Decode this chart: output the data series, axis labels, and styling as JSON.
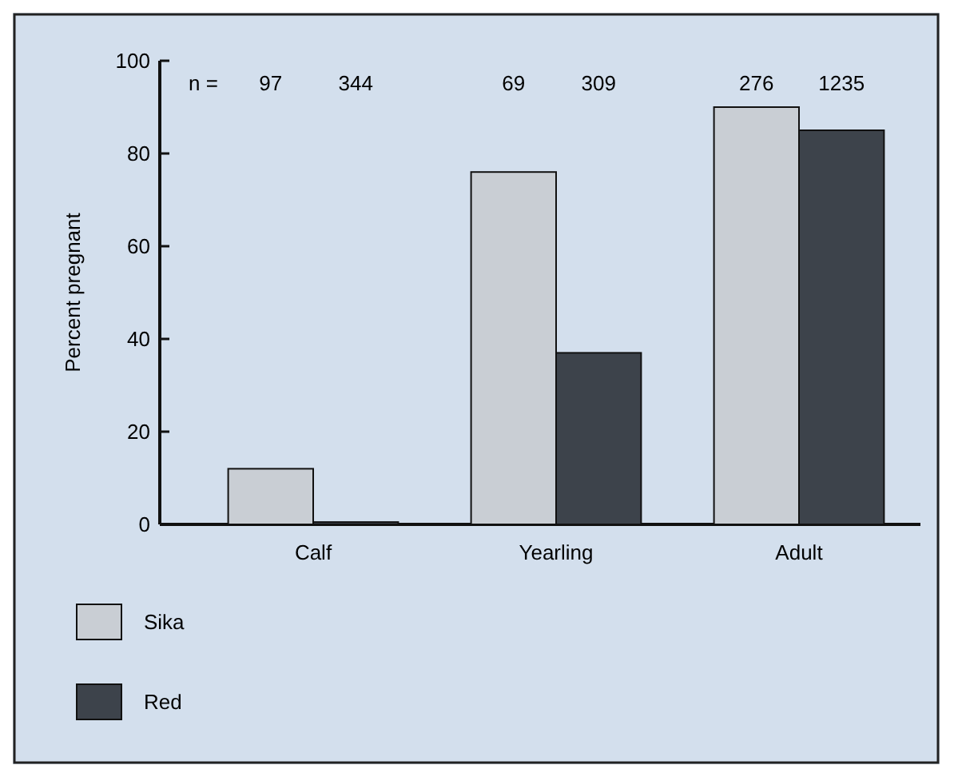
{
  "chart_data": {
    "type": "bar",
    "ylabel": "Percent pregnant",
    "categories": [
      "Calf",
      "Yearling",
      "Adult"
    ],
    "series": [
      {
        "name": "Sika",
        "color": "#c9ced4",
        "values": [
          12,
          76,
          90
        ]
      },
      {
        "name": "Red",
        "color": "#3d434b",
        "values": [
          0.5,
          37,
          85
        ]
      }
    ],
    "ylim": [
      0,
      100
    ],
    "yticks": [
      0,
      20,
      40,
      60,
      80,
      100
    ],
    "legend": "bottom left",
    "annotations": [
      "n =",
      "97",
      "344",
      "69",
      "309",
      "276",
      "1235"
    ]
  }
}
